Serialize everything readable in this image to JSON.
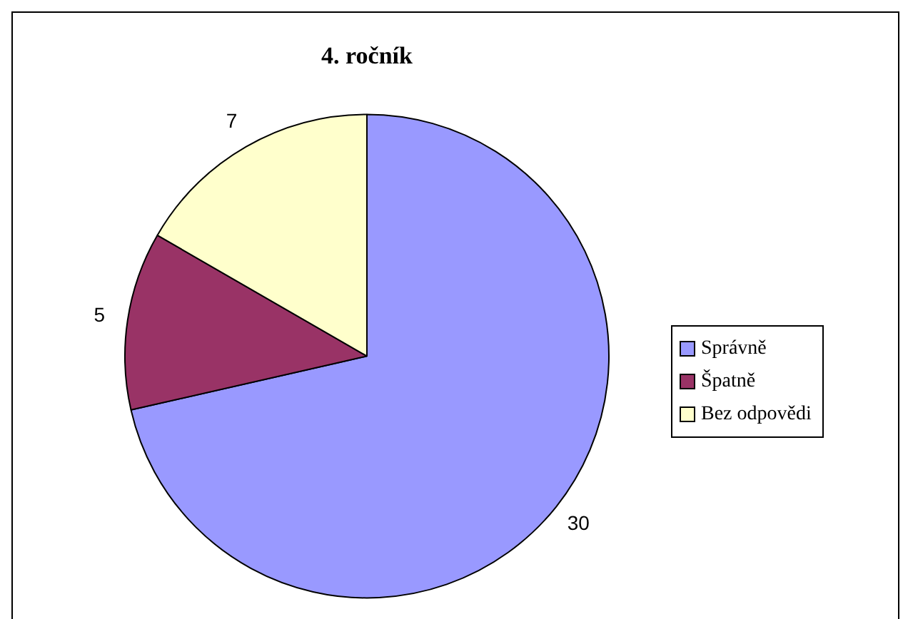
{
  "chart_data": {
    "type": "pie",
    "title": "4. ročník",
    "categories": [
      "Správně",
      "Špatně",
      "Bez odpovědi"
    ],
    "values": [
      30,
      5,
      7
    ],
    "colors": [
      "#9999ff",
      "#993366",
      "#ffffcc"
    ],
    "data_labels": true,
    "legend": "right"
  }
}
